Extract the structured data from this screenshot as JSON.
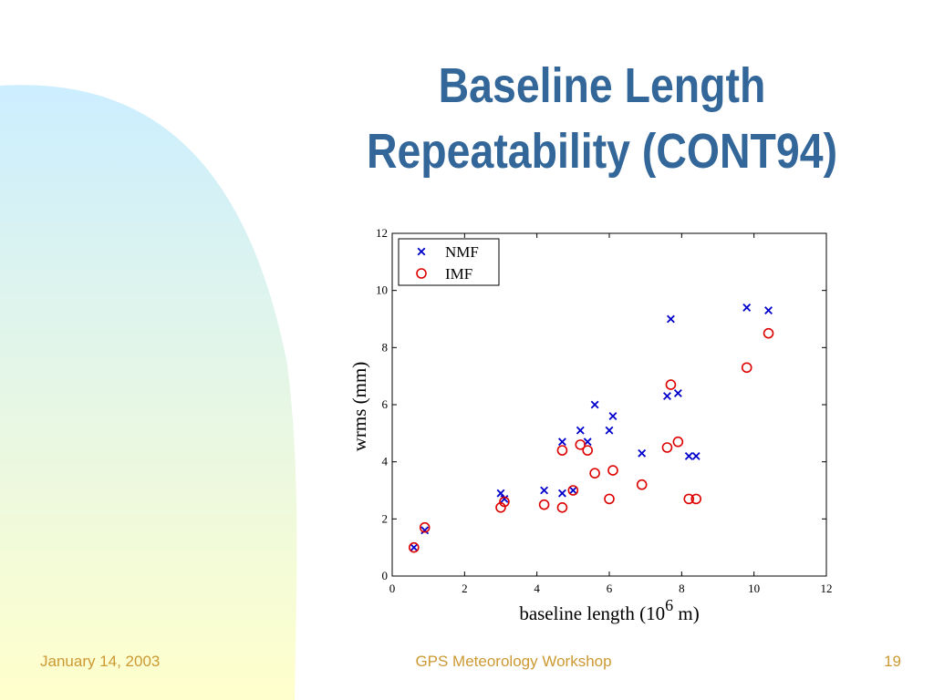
{
  "slide": {
    "title_line1": "Baseline Length",
    "title_line2": "Repeatability (CONT94)",
    "footer_date": "January 14, 2003",
    "footer_event": "GPS Meteorology Workshop",
    "footer_page": "19",
    "colors": {
      "title": "#336699",
      "footer": "#cc9933",
      "background_gradient_top": "#cceeff",
      "background_gradient_bottom": "#ffffcc"
    }
  },
  "chart_data": {
    "type": "scatter",
    "xlabel": "baseline length (10",
    "xlabel_exponent": "6",
    "xlabel_suffix": " m)",
    "ylabel": "wrms (mm)",
    "xlim": [
      0,
      12
    ],
    "ylim": [
      0,
      12
    ],
    "xticks": [
      0,
      2,
      4,
      6,
      8,
      10,
      12
    ],
    "yticks": [
      0,
      2,
      4,
      6,
      8,
      10,
      12
    ],
    "grid": false,
    "legend_position": "top-left",
    "series": [
      {
        "name": "NMF",
        "marker": "x",
        "color": "#0000cc",
        "points": [
          [
            0.6,
            1.0
          ],
          [
            0.9,
            1.6
          ],
          [
            3.0,
            2.9
          ],
          [
            3.1,
            2.7
          ],
          [
            4.2,
            3.0
          ],
          [
            4.7,
            4.7
          ],
          [
            4.7,
            2.9
          ],
          [
            5.0,
            3.0
          ],
          [
            5.2,
            5.1
          ],
          [
            5.4,
            4.7
          ],
          [
            5.6,
            6.0
          ],
          [
            6.0,
            5.1
          ],
          [
            6.1,
            5.6
          ],
          [
            6.9,
            4.3
          ],
          [
            7.6,
            6.3
          ],
          [
            7.7,
            9.0
          ],
          [
            7.9,
            6.4
          ],
          [
            8.2,
            4.2
          ],
          [
            8.4,
            4.2
          ],
          [
            9.8,
            9.4
          ],
          [
            10.4,
            9.3
          ]
        ]
      },
      {
        "name": "IMF",
        "marker": "o",
        "color": "#dd0000",
        "points": [
          [
            0.6,
            1.0
          ],
          [
            0.9,
            1.7
          ],
          [
            3.0,
            2.4
          ],
          [
            3.1,
            2.6
          ],
          [
            4.2,
            2.5
          ],
          [
            4.7,
            2.4
          ],
          [
            4.7,
            4.4
          ],
          [
            5.0,
            3.0
          ],
          [
            5.2,
            4.6
          ],
          [
            5.4,
            4.4
          ],
          [
            5.6,
            3.6
          ],
          [
            6.0,
            2.7
          ],
          [
            6.1,
            3.7
          ],
          [
            6.9,
            3.2
          ],
          [
            7.6,
            4.5
          ],
          [
            7.7,
            6.7
          ],
          [
            7.9,
            4.7
          ],
          [
            8.2,
            2.7
          ],
          [
            8.4,
            2.7
          ],
          [
            9.8,
            7.3
          ],
          [
            10.4,
            8.5
          ]
        ]
      }
    ]
  }
}
